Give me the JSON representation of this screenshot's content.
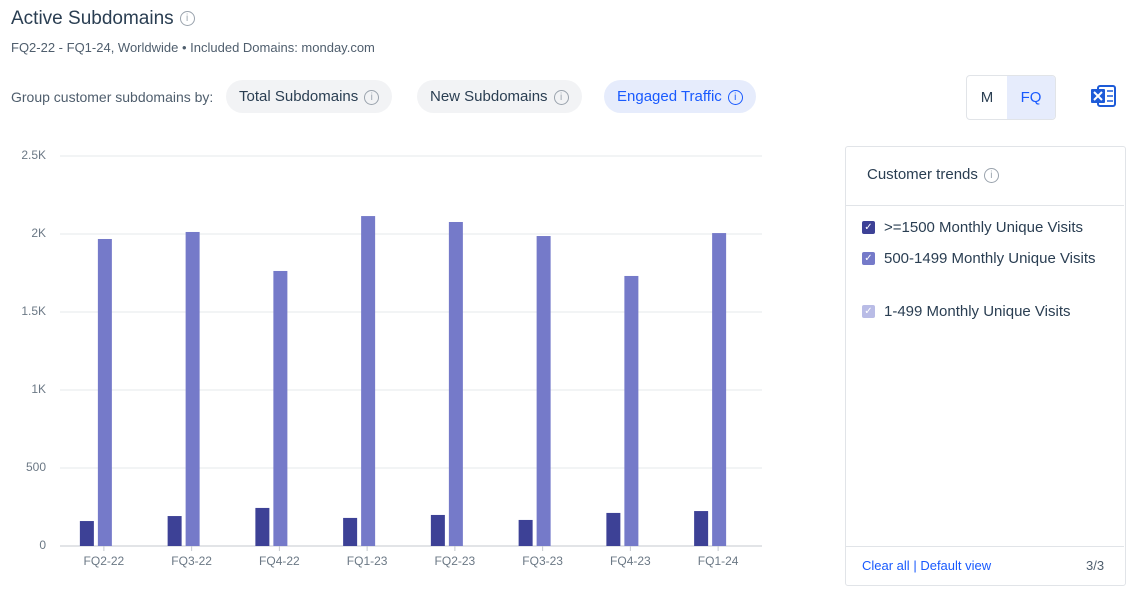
{
  "header": {
    "title": "Active Subdomains",
    "subtitle": "FQ2-22 - FQ1-24, Worldwide • Included Domains: monday.com"
  },
  "controls": {
    "group_label": "Group customer subdomains by:",
    "options": [
      "Total Subdomains",
      "New Subdomains",
      "Engaged Traffic"
    ],
    "periods": [
      "M",
      "FQ"
    ]
  },
  "chart_data": {
    "type": "bar",
    "categories": [
      "FQ2-22",
      "FQ3-22",
      "FQ4-22",
      "FQ1-23",
      "FQ2-23",
      "FQ3-23",
      "FQ4-23",
      "FQ1-24"
    ],
    "series": [
      {
        "name": ">=1500 Monthly Unique Visits",
        "color": "#3d4196",
        "values": [
          160,
          192,
          244,
          180,
          199,
          167,
          212,
          224
        ]
      },
      {
        "name": "500-1499 Monthly Unique Visits",
        "color": "#757ac9",
        "values": [
          1968,
          2013,
          1763,
          2115,
          2077,
          1987,
          1731,
          2006
        ]
      },
      {
        "name": "1-499 Monthly Unique Visits",
        "color": "#b9bce6",
        "values": [
          null,
          null,
          null,
          null,
          null,
          null,
          null,
          null
        ]
      }
    ],
    "ylim": [
      0,
      2500
    ],
    "yticks": [
      0,
      500,
      {
        "value": 1000,
        "label": "1K"
      },
      {
        "value": 1500,
        "label": "1.5K"
      },
      {
        "value": 2000,
        "label": "2K"
      },
      {
        "value": 2500,
        "label": "2.5K"
      }
    ],
    "grid": true
  },
  "panel": {
    "title": "Customer trends",
    "clear_all": "Clear all",
    "separator": "|",
    "default_view": "Default view",
    "count": "3/3"
  }
}
